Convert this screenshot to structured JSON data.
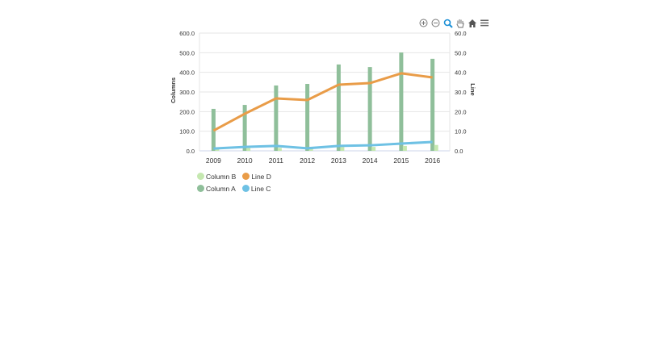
{
  "toolbar": {
    "buttons": [
      {
        "name": "zoom-in-icon",
        "glyph": "⊕"
      },
      {
        "name": "zoom-out-icon",
        "glyph": "⊖"
      },
      {
        "name": "magnifier-zoom-icon",
        "glyph": "🔍"
      },
      {
        "name": "pan-hand-icon",
        "glyph": "✋"
      },
      {
        "name": "home-reset-icon",
        "glyph": "⌂"
      },
      {
        "name": "menu-icon",
        "glyph": "≡"
      }
    ]
  },
  "legend": {
    "rows": [
      [
        {
          "label": "Column B",
          "color": "#c5e8b0"
        },
        {
          "label": "Line D",
          "color": "#e99c48"
        }
      ],
      [
        {
          "label": "Column A",
          "color": "#8fbf9a"
        },
        {
          "label": "Line C",
          "color": "#6ec1e4"
        }
      ]
    ]
  },
  "chart_data": {
    "type": "bar",
    "title": "",
    "categories": [
      "2009",
      "2010",
      "2011",
      "2012",
      "2013",
      "2014",
      "2015",
      "2016"
    ],
    "xlabel": "",
    "ylabel": "Columns",
    "ylabel_right": "Line",
    "ylim": [
      0,
      600
    ],
    "ylim_right": [
      0,
      60
    ],
    "yticks": [
      "0.0",
      "100.0",
      "200.0",
      "300.0",
      "400.0",
      "500.0",
      "600.0"
    ],
    "yticks_right": [
      "0.0",
      "10.0",
      "20.0",
      "30.0",
      "40.0",
      "50.0",
      "60.0"
    ],
    "grid": true,
    "legend_position": "bottom-left",
    "series": [
      {
        "name": "Column A",
        "type": "bar",
        "axis": "left",
        "color": "#8fbf9a",
        "values": [
          214,
          234,
          333,
          341,
          440,
          427,
          501,
          469
        ]
      },
      {
        "name": "Column B",
        "type": "bar",
        "axis": "left",
        "color": "#c5e8b0",
        "values": [
          12,
          14,
          15,
          11,
          20,
          20,
          25,
          30
        ]
      },
      {
        "name": "Line C",
        "type": "line",
        "axis": "right",
        "color": "#6ec1e4",
        "values": [
          1.2,
          2.0,
          2.5,
          1.3,
          2.5,
          2.8,
          3.7,
          4.5
        ]
      },
      {
        "name": "Line D",
        "type": "line",
        "axis": "right",
        "color": "#e99c48",
        "values": [
          10.3,
          18.9,
          26.7,
          25.9,
          33.7,
          34.5,
          39.5,
          37.4
        ]
      }
    ]
  }
}
